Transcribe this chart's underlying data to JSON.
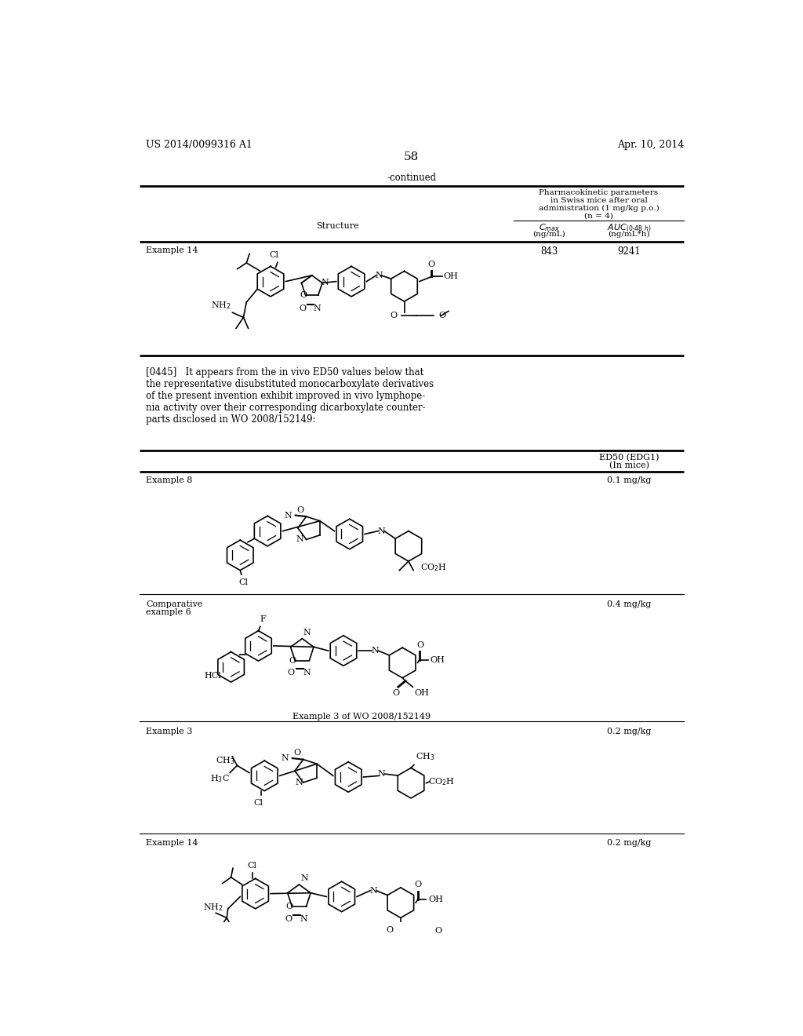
{
  "background_color": "#ffffff",
  "header_left": "US 2014/0099316 A1",
  "header_right": "Apr. 10, 2014",
  "page_number": "58",
  "continued_text": "-continued",
  "pk_header": "Pharmacokinetic parameters\nin Swiss mice after oral\nadministration (1 mg/kg p.o.)\n(n = 4)",
  "structure_label": "Structure",
  "cmax_label": "C",
  "cmax_sub": "max",
  "cmax_unit": "(ng/mL)",
  "auc_label": "AUC",
  "auc_sub": "(0-48 h)",
  "auc_unit": "(ng/mL*h)",
  "ex14_label": "Example 14",
  "ex14_cmax": "843",
  "ex14_auc": "9241",
  "paragraph": "[0445]   It appears from the in vivo ED50 values below that\nthe representative disubstituted monocarboxylate derivatives\nof the present invention exhibit improved in vivo lymphope-\nnia activity over their corresponding dicarboxylate counter-\nparts disclosed in WO 2008/152149:",
  "ed50_header": "ED50 (EDG1)\n(In mice)",
  "row_labels": [
    "Example 8",
    "Comparative\nexample 6",
    "Example 3",
    "Example 14"
  ],
  "row_values": [
    "0.1 mg/kg",
    "0.4 mg/kg",
    "0.2 mg/kg",
    "0.2 mg/kg"
  ],
  "comp_caption": "Example 3 of WO 2008/152149"
}
